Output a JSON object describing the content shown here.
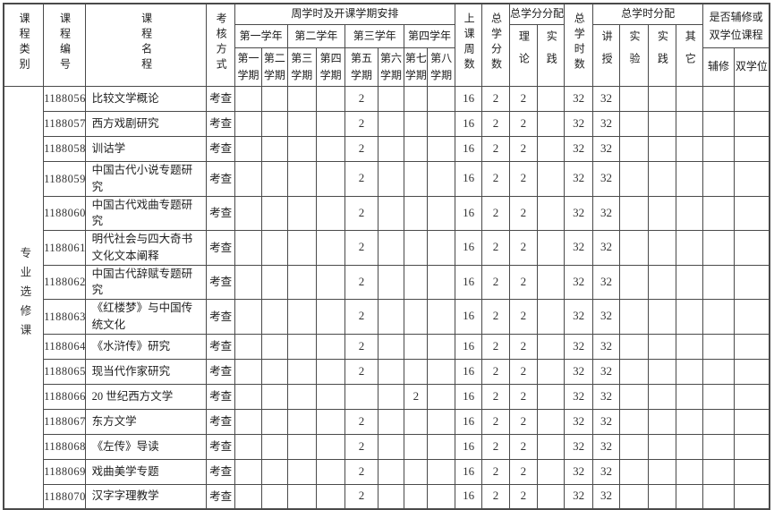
{
  "table": {
    "header": {
      "col_category": "课程类别",
      "col_number": "课程编号",
      "col_name": "课程名程",
      "col_assessment": "考核方式",
      "schedule_title": "周学时及开课学期安排",
      "years": [
        "第一学年",
        "第二学年",
        "第三学年",
        "第四学年"
      ],
      "semesters": [
        "第一学期",
        "第二学期",
        "第三学期",
        "第四学期",
        "第五学期",
        "第六学期",
        "第七学期",
        "第八学期"
      ],
      "col_weeks": "上课周数",
      "col_total_credits": "总学分数",
      "credit_dist_title": "总学分分配",
      "credit_dist_theory": "理论",
      "credit_dist_practice": "实践",
      "col_total_hours": "总学时数",
      "hour_dist_title": "总学时分配",
      "hour_dist_lecture": "讲授",
      "hour_dist_experiment": "实验",
      "hour_dist_practice": "实践",
      "hour_dist_other": "其它",
      "minor_title": "是否辅修或双学位课程",
      "minor_label": "辅修",
      "double_degree_label": "双学位"
    },
    "category_label": "专业选修课",
    "rows": [
      {
        "number": "1188056",
        "name": "比较文学概论",
        "assessment": "考查",
        "sem": [
          "",
          "",
          "",
          "",
          "2",
          "",
          "",
          ""
        ],
        "weeks": "16",
        "credits": "2",
        "theory": "2",
        "practice": "",
        "hours": "32",
        "lecture": "32",
        "experiment": "",
        "practice2": "",
        "other": "",
        "minor": "",
        "double_degree": ""
      },
      {
        "number": "1188057",
        "name": "西方戏剧研究",
        "assessment": "考查",
        "sem": [
          "",
          "",
          "",
          "",
          "2",
          "",
          "",
          ""
        ],
        "weeks": "16",
        "credits": "2",
        "theory": "2",
        "practice": "",
        "hours": "32",
        "lecture": "32",
        "experiment": "",
        "practice2": "",
        "other": "",
        "minor": "",
        "double_degree": ""
      },
      {
        "number": "1188058",
        "name": "训诂学",
        "assessment": "考查",
        "sem": [
          "",
          "",
          "",
          "",
          "2",
          "",
          "",
          ""
        ],
        "weeks": "16",
        "credits": "2",
        "theory": "2",
        "practice": "",
        "hours": "32",
        "lecture": "32",
        "experiment": "",
        "practice2": "",
        "other": "",
        "minor": "",
        "double_degree": ""
      },
      {
        "number": "1188059",
        "name": "中国古代小说专题研究",
        "assessment": "考查",
        "sem": [
          "",
          "",
          "",
          "",
          "2",
          "",
          "",
          ""
        ],
        "weeks": "16",
        "credits": "2",
        "theory": "2",
        "practice": "",
        "hours": "32",
        "lecture": "32",
        "experiment": "",
        "practice2": "",
        "other": "",
        "minor": "",
        "double_degree": ""
      },
      {
        "number": "1188060",
        "name": "中国古代戏曲专题研究",
        "assessment": "考查",
        "sem": [
          "",
          "",
          "",
          "",
          "2",
          "",
          "",
          ""
        ],
        "weeks": "16",
        "credits": "2",
        "theory": "2",
        "practice": "",
        "hours": "32",
        "lecture": "32",
        "experiment": "",
        "practice2": "",
        "other": "",
        "minor": "",
        "double_degree": ""
      },
      {
        "number": "1188061",
        "name": "明代社会与四大奇书文化文本阐释",
        "assessment": "考查",
        "sem": [
          "",
          "",
          "",
          "",
          "2",
          "",
          "",
          ""
        ],
        "weeks": "16",
        "credits": "2",
        "theory": "2",
        "practice": "",
        "hours": "32",
        "lecture": "32",
        "experiment": "",
        "practice2": "",
        "other": "",
        "minor": "",
        "double_degree": ""
      },
      {
        "number": "1188062",
        "name": "中国古代辞赋专题研究",
        "assessment": "考查",
        "sem": [
          "",
          "",
          "",
          "",
          "2",
          "",
          "",
          ""
        ],
        "weeks": "16",
        "credits": "2",
        "theory": "2",
        "practice": "",
        "hours": "32",
        "lecture": "32",
        "experiment": "",
        "practice2": "",
        "other": "",
        "minor": "",
        "double_degree": ""
      },
      {
        "number": "1188063",
        "name": "《红楼梦》与中国传统文化",
        "assessment": "考查",
        "sem": [
          "",
          "",
          "",
          "",
          "2",
          "",
          "",
          ""
        ],
        "weeks": "16",
        "credits": "2",
        "theory": "2",
        "practice": "",
        "hours": "32",
        "lecture": "32",
        "experiment": "",
        "practice2": "",
        "other": "",
        "minor": "",
        "double_degree": ""
      },
      {
        "number": "1188064",
        "name": "《水浒传》研究",
        "assessment": "考查",
        "sem": [
          "",
          "",
          "",
          "",
          "2",
          "",
          "",
          ""
        ],
        "weeks": "16",
        "credits": "2",
        "theory": "2",
        "practice": "",
        "hours": "32",
        "lecture": "32",
        "experiment": "",
        "practice2": "",
        "other": "",
        "minor": "",
        "double_degree": ""
      },
      {
        "number": "1188065",
        "name": "现当代作家研究",
        "assessment": "考查",
        "sem": [
          "",
          "",
          "",
          "",
          "2",
          "",
          "",
          ""
        ],
        "weeks": "16",
        "credits": "2",
        "theory": "2",
        "practice": "",
        "hours": "32",
        "lecture": "32",
        "experiment": "",
        "practice2": "",
        "other": "",
        "minor": "",
        "double_degree": ""
      },
      {
        "number": "1188066",
        "name": "20 世纪西方文学",
        "assessment": "考查",
        "sem": [
          "",
          "",
          "",
          "",
          "",
          "",
          "2",
          ""
        ],
        "weeks": "16",
        "credits": "2",
        "theory": "2",
        "practice": "",
        "hours": "32",
        "lecture": "32",
        "experiment": "",
        "practice2": "",
        "other": "",
        "minor": "",
        "double_degree": ""
      },
      {
        "number": "1188067",
        "name": "东方文学",
        "assessment": "考查",
        "sem": [
          "",
          "",
          "",
          "",
          "2",
          "",
          "",
          ""
        ],
        "weeks": "16",
        "credits": "2",
        "theory": "2",
        "practice": "",
        "hours": "32",
        "lecture": "32",
        "experiment": "",
        "practice2": "",
        "other": "",
        "minor": "",
        "double_degree": ""
      },
      {
        "number": "1188068",
        "name": "《左传》导读",
        "assessment": "考查",
        "sem": [
          "",
          "",
          "",
          "",
          "2",
          "",
          "",
          ""
        ],
        "weeks": "16",
        "credits": "2",
        "theory": "2",
        "practice": "",
        "hours": "32",
        "lecture": "32",
        "experiment": "",
        "practice2": "",
        "other": "",
        "minor": "",
        "double_degree": ""
      },
      {
        "number": "1188069",
        "name": "戏曲美学专题",
        "assessment": "考查",
        "sem": [
          "",
          "",
          "",
          "",
          "2",
          "",
          "",
          ""
        ],
        "weeks": "16",
        "credits": "2",
        "theory": "2",
        "practice": "",
        "hours": "32",
        "lecture": "32",
        "experiment": "",
        "practice2": "",
        "other": "",
        "minor": "",
        "double_degree": ""
      },
      {
        "number": "1188070",
        "name": "汉字字理教学",
        "assessment": "考查",
        "sem": [
          "",
          "",
          "",
          "",
          "2",
          "",
          "",
          ""
        ],
        "weeks": "16",
        "credits": "2",
        "theory": "2",
        "practice": "",
        "hours": "32",
        "lecture": "32",
        "experiment": "",
        "practice2": "",
        "other": "",
        "minor": "",
        "double_degree": ""
      }
    ]
  }
}
